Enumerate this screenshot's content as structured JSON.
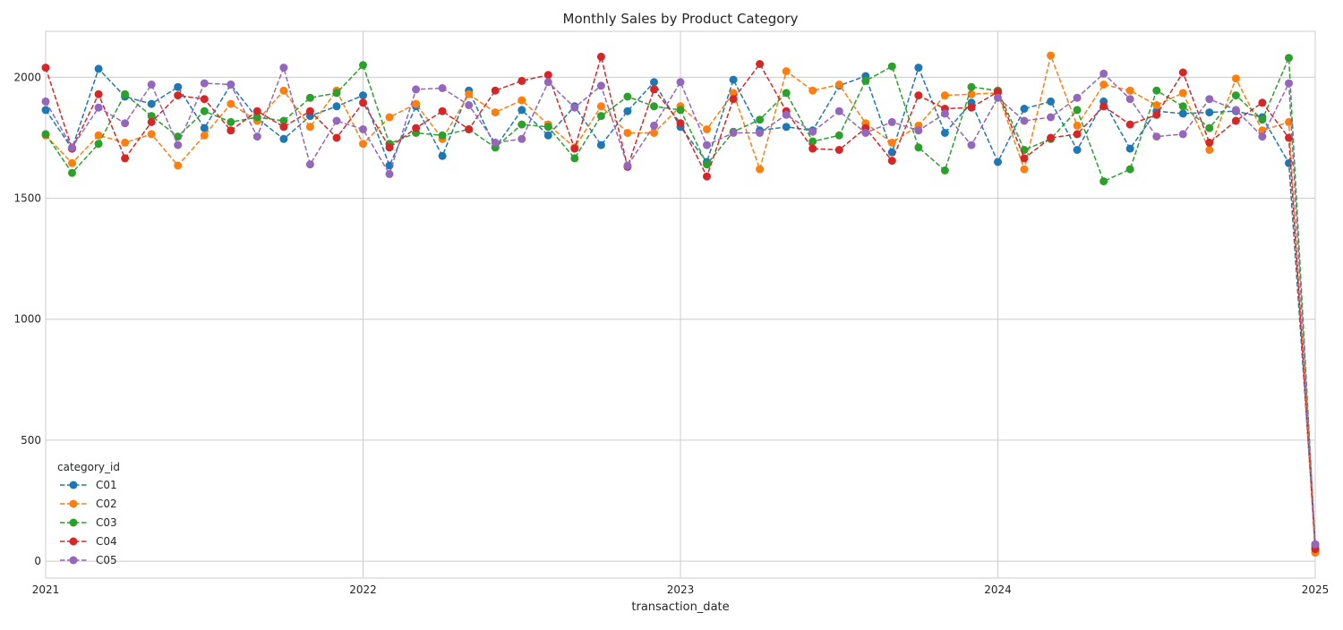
{
  "chart_data": {
    "type": "line",
    "title": "Monthly Sales by Product Category",
    "xlabel": "transaction_date",
    "ylabel": "",
    "xlim": [
      "2021-01",
      "2025-01"
    ],
    "ylim": [
      -70,
      2190
    ],
    "x_ticks": [
      "2021",
      "2022",
      "2023",
      "2024",
      "2025"
    ],
    "y_ticks": [
      0,
      500,
      1000,
      1500,
      2000
    ],
    "grid": true,
    "legend": {
      "title": "category_id",
      "placement": "lower-left"
    },
    "line_style": "dashed",
    "marker": "circle",
    "x": [
      "2021-01",
      "2021-02",
      "2021-03",
      "2021-04",
      "2021-05",
      "2021-06",
      "2021-07",
      "2021-08",
      "2021-09",
      "2021-10",
      "2021-11",
      "2021-12",
      "2022-01",
      "2022-02",
      "2022-03",
      "2022-04",
      "2022-05",
      "2022-06",
      "2022-07",
      "2022-08",
      "2022-09",
      "2022-10",
      "2022-11",
      "2022-12",
      "2023-01",
      "2023-02",
      "2023-03",
      "2023-04",
      "2023-05",
      "2023-06",
      "2023-07",
      "2023-08",
      "2023-09",
      "2023-10",
      "2023-11",
      "2023-12",
      "2024-01",
      "2024-02",
      "2024-03",
      "2024-04",
      "2024-05",
      "2024-06",
      "2024-07",
      "2024-08",
      "2024-09",
      "2024-10",
      "2024-11",
      "2024-12",
      "2025-01"
    ],
    "series": [
      {
        "name": "C01",
        "color": "#1f77b4",
        "values": [
          1865,
          1705,
          2035,
          1920,
          1890,
          1960,
          1790,
          1970,
          1830,
          1745,
          1840,
          1880,
          1925,
          1635,
          1880,
          1675,
          1945,
          1710,
          1865,
          1760,
          1880,
          1720,
          1860,
          1980,
          1795,
          1650,
          1990,
          1780,
          1795,
          1780,
          1965,
          2005,
          1690,
          2040,
          1770,
          1895,
          1650,
          1870,
          1900,
          1700,
          1900,
          1705,
          1860,
          1850,
          1855,
          1860,
          1835,
          1645,
          70
        ]
      },
      {
        "name": "C02",
        "color": "#ff7f0e",
        "values": [
          1760,
          1645,
          1760,
          1730,
          1765,
          1635,
          1760,
          1890,
          1820,
          1945,
          1795,
          1945,
          1725,
          1835,
          1890,
          1745,
          1930,
          1855,
          1905,
          1805,
          1710,
          1880,
          1770,
          1770,
          1880,
          1785,
          1935,
          1620,
          2025,
          1945,
          1970,
          1810,
          1730,
          1800,
          1925,
          1930,
          1935,
          1620,
          2090,
          1800,
          1970,
          1945,
          1885,
          1935,
          1700,
          1995,
          1780,
          1815,
          35
        ]
      },
      {
        "name": "C03",
        "color": "#2ca02c",
        "values": [
          1765,
          1605,
          1725,
          1930,
          1840,
          1755,
          1860,
          1815,
          1835,
          1820,
          1915,
          1935,
          2050,
          1725,
          1770,
          1760,
          1785,
          1710,
          1805,
          1795,
          1665,
          1840,
          1920,
          1880,
          1865,
          1640,
          1775,
          1825,
          1935,
          1735,
          1760,
          1985,
          2045,
          1710,
          1615,
          1960,
          1945,
          1700,
          1745,
          1865,
          1570,
          1620,
          1945,
          1880,
          1790,
          1925,
          1825,
          2080,
          60
        ]
      },
      {
        "name": "C04",
        "color": "#d62728",
        "values": [
          2040,
          1705,
          1930,
          1665,
          1815,
          1925,
          1910,
          1780,
          1860,
          1795,
          1860,
          1750,
          1895,
          1710,
          1790,
          1860,
          1785,
          1945,
          1985,
          2010,
          1705,
          2085,
          1630,
          1950,
          1810,
          1590,
          1910,
          2055,
          1860,
          1705,
          1700,
          1790,
          1655,
          1925,
          1870,
          1875,
          1940,
          1665,
          1750,
          1765,
          1880,
          1805,
          1845,
          2020,
          1730,
          1820,
          1895,
          1750,
          50
        ]
      },
      {
        "name": "C05",
        "color": "#9467bd",
        "values": [
          1900,
          1710,
          1875,
          1810,
          1970,
          1720,
          1975,
          1970,
          1755,
          2040,
          1640,
          1820,
          1785,
          1600,
          1950,
          1955,
          1885,
          1730,
          1745,
          1980,
          1875,
          1965,
          1635,
          1800,
          1980,
          1720,
          1770,
          1770,
          1845,
          1775,
          1860,
          1770,
          1815,
          1780,
          1850,
          1720,
          1915,
          1820,
          1835,
          1915,
          2015,
          1910,
          1755,
          1765,
          1910,
          1865,
          1755,
          1975,
          70
        ]
      }
    ]
  }
}
